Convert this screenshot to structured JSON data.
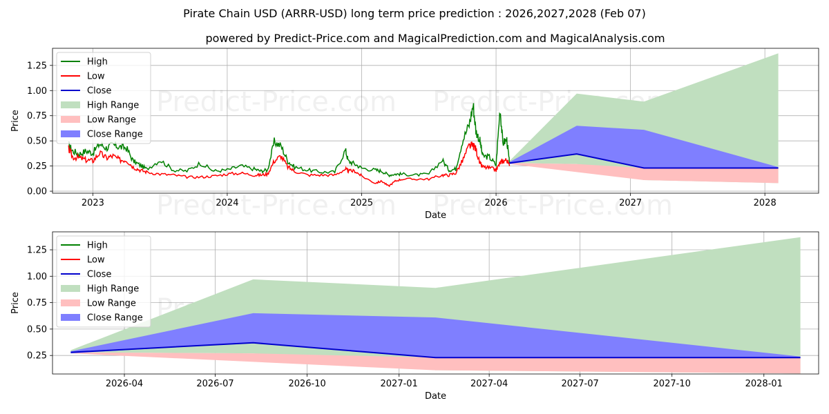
{
  "chart_data": [
    {
      "type": "line",
      "title": "Pirate Chain USD (ARRR-USD) long term price prediction : 2026,2027,2028 (Feb 07)",
      "subtitle": "powered by Predict-Price.com and MagicalPrediction.com and MagicalAnalysis.com",
      "xlabel": "Date",
      "ylabel": "Price",
      "xlim": [
        2022.7,
        2028.4
      ],
      "ylim": [
        -0.02,
        1.42
      ],
      "x_ticks": [
        2023,
        2024,
        2025,
        2026,
        2027,
        2028
      ],
      "x_tick_labels": [
        "2023",
        "2024",
        "2025",
        "2026",
        "2027",
        "2028"
      ],
      "y_ticks": [
        0.0,
        0.25,
        0.5,
        0.75,
        1.0,
        1.25
      ],
      "y_tick_labels": [
        "0.00",
        "0.25",
        "0.50",
        "0.75",
        "1.00",
        "1.25"
      ],
      "grid": true,
      "legend_position": "top-left",
      "watermarks": [
        "Predict-Price.com",
        "Predict-Price.com",
        "Predict-Price.com",
        "Predict-Price.com"
      ],
      "history_x": [
        2022.82,
        2022.85,
        2022.9,
        2022.95,
        2023.0,
        2023.05,
        2023.1,
        2023.15,
        2023.2,
        2023.25,
        2023.3,
        2023.35,
        2023.4,
        2023.5,
        2023.6,
        2023.7,
        2023.8,
        2023.9,
        2024.0,
        2024.1,
        2024.2,
        2024.25,
        2024.3,
        2024.35,
        2024.4,
        2024.45,
        2024.5,
        2024.6,
        2024.7,
        2024.8,
        2024.88,
        2024.9,
        2024.95,
        2025.0,
        2025.1,
        2025.15,
        2025.2,
        2025.25,
        2025.3,
        2025.4,
        2025.5,
        2025.6,
        2025.65,
        2025.7,
        2025.75,
        2025.8,
        2025.83,
        2025.85,
        2025.88,
        2025.9,
        2025.95,
        2026.0,
        2026.03,
        2026.05,
        2026.08,
        2026.1
      ],
      "history_high": [
        0.46,
        0.4,
        0.37,
        0.4,
        0.38,
        0.47,
        0.43,
        0.46,
        0.44,
        0.43,
        0.3,
        0.26,
        0.22,
        0.31,
        0.21,
        0.2,
        0.28,
        0.2,
        0.21,
        0.25,
        0.22,
        0.2,
        0.21,
        0.49,
        0.45,
        0.3,
        0.24,
        0.21,
        0.19,
        0.19,
        0.41,
        0.3,
        0.27,
        0.23,
        0.21,
        0.2,
        0.16,
        0.17,
        0.17,
        0.16,
        0.17,
        0.31,
        0.21,
        0.22,
        0.5,
        0.66,
        0.86,
        0.6,
        0.5,
        0.35,
        0.34,
        0.26,
        0.83,
        0.48,
        0.51,
        0.28
      ],
      "history_low": [
        0.42,
        0.34,
        0.33,
        0.31,
        0.3,
        0.38,
        0.33,
        0.35,
        0.31,
        0.31,
        0.24,
        0.21,
        0.19,
        0.17,
        0.16,
        0.14,
        0.14,
        0.15,
        0.17,
        0.18,
        0.16,
        0.16,
        0.17,
        0.3,
        0.35,
        0.24,
        0.2,
        0.16,
        0.16,
        0.16,
        0.22,
        0.2,
        0.2,
        0.15,
        0.08,
        0.1,
        0.05,
        0.1,
        0.12,
        0.12,
        0.12,
        0.16,
        0.16,
        0.18,
        0.3,
        0.45,
        0.45,
        0.42,
        0.27,
        0.24,
        0.23,
        0.21,
        0.28,
        0.3,
        0.31,
        0.25
      ],
      "forecast_x": [
        2026.1,
        2026.6,
        2027.1,
        2028.1
      ],
      "high_range": [
        [
          0.3,
          0.28
        ],
        [
          0.97,
          0.27
        ],
        [
          0.89,
          0.11
        ],
        [
          1.37,
          0.08
        ]
      ],
      "low_range": [
        [
          0.28,
          0.27
        ],
        [
          0.27,
          0.19
        ],
        [
          0.23,
          0.11
        ],
        [
          0.23,
          0.08
        ]
      ],
      "close_range": [
        [
          0.29,
          0.27
        ],
        [
          0.65,
          0.37
        ],
        [
          0.61,
          0.23
        ],
        [
          0.24,
          0.23
        ]
      ],
      "close_forecast": [
        0.28,
        0.37,
        0.23,
        0.23
      ]
    },
    {
      "type": "line",
      "title": "",
      "xlabel": "Date",
      "ylabel": "Price",
      "xlim": [
        2026.05,
        2028.15
      ],
      "ylim": [
        0.075,
        1.42
      ],
      "x_ticks": [
        2026.247,
        2026.496,
        2026.748,
        2027.0,
        2027.247,
        2027.496,
        2027.748,
        2028.0
      ],
      "x_tick_labels": [
        "2026-04",
        "2026-07",
        "2026-10",
        "2027-01",
        "2027-04",
        "2027-07",
        "2027-10",
        "2028-01"
      ],
      "y_ticks": [
        0.25,
        0.5,
        0.75,
        1.0,
        1.25
      ],
      "y_tick_labels": [
        "0.25",
        "0.50",
        "0.75",
        "1.00",
        "1.25"
      ],
      "grid": true,
      "legend_position": "top-left",
      "watermarks": [
        "Predict-Price.com",
        "Predict-Price.com"
      ],
      "forecast_x": [
        2026.1,
        2026.6,
        2027.1,
        2028.1
      ],
      "high_range": [
        [
          0.3,
          0.28
        ],
        [
          0.97,
          0.27
        ],
        [
          0.89,
          0.11
        ],
        [
          1.37,
          0.08
        ]
      ],
      "low_range": [
        [
          0.28,
          0.27
        ],
        [
          0.27,
          0.19
        ],
        [
          0.23,
          0.11
        ],
        [
          0.23,
          0.08
        ]
      ],
      "close_range": [
        [
          0.29,
          0.27
        ],
        [
          0.65,
          0.37
        ],
        [
          0.61,
          0.23
        ],
        [
          0.24,
          0.23
        ]
      ],
      "close_forecast": [
        0.28,
        0.37,
        0.23,
        0.23
      ]
    }
  ],
  "legend": [
    {
      "label": "High",
      "kind": "line",
      "color": "#008000"
    },
    {
      "label": "Low",
      "kind": "line",
      "color": "#ff0000"
    },
    {
      "label": "Close",
      "kind": "line",
      "color": "#0000cc"
    },
    {
      "label": "High Range",
      "kind": "patch",
      "color": "#c0dfbf"
    },
    {
      "label": "Low Range",
      "kind": "patch",
      "color": "#ffbfbf"
    },
    {
      "label": "Close Range",
      "kind": "patch",
      "color": "#7f7fff"
    }
  ],
  "colors": {
    "high": "#008000",
    "low": "#ff0000",
    "close": "#0000cc",
    "high_range": "#c0dfbf",
    "low_range": "#ffbfbf",
    "close_range": "#7f7fff",
    "grid": "#b0b0b0"
  }
}
